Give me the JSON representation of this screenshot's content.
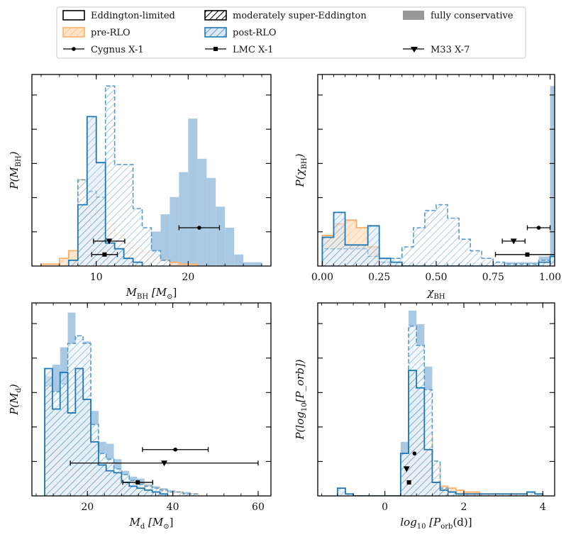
{
  "legend": {
    "items": [
      {
        "label": "Eddington-limited",
        "kind": "open"
      },
      {
        "label": "moderately super-Eddington",
        "kind": "hatch"
      },
      {
        "label": "fully conservative",
        "kind": "filled"
      },
      {
        "label": "pre-RLO",
        "kind": "pre"
      },
      {
        "label": "post-RLO",
        "kind": "post"
      },
      {
        "label": "Cygnus X-1",
        "kind": "marker",
        "marker": "circle"
      },
      {
        "label": "LMC X-1",
        "kind": "marker",
        "marker": "square"
      },
      {
        "label": "M33 X-7",
        "kind": "marker",
        "marker": "triangle"
      }
    ]
  },
  "colors": {
    "post_edge": "#1f77b4",
    "pre_edge": "#ffb066",
    "pre_fill": "#ffddbb",
    "full_fill": "#a9c9e3",
    "post_hatch_fill": "#c9dcee",
    "gray": "#999999"
  },
  "chart_data": [
    {
      "id": "mbh",
      "type": "histogram",
      "xlabel_base": "M",
      "xlabel_sub": "BH",
      "xlabel_unit": "[M",
      "xlabel_unit_sub": "⊙",
      "xlabel_close": "]",
      "ylabel_base": "P(M",
      "ylabel_sub": "BH",
      "ylabel_close": ")",
      "xlim": [
        3,
        29
      ],
      "ylim": [
        0,
        1.0
      ],
      "xticks": [
        10,
        20
      ],
      "xticklabels": [
        "10",
        "20"
      ],
      "binw": 1.0,
      "fully_post": {
        "start": 15,
        "heights": [
          0.08,
          0.18,
          0.27,
          0.36,
          0.49,
          0.77,
          0.56,
          0.46,
          0.31,
          0.2,
          0.06,
          0.02,
          0.02
        ]
      },
      "super_post": {
        "start": 8,
        "heights": [
          0.45,
          0.39,
          0.36,
          0.94,
          0.53,
          0.53,
          0.3,
          0.2,
          0.08,
          0.03
        ]
      },
      "edd_post": {
        "start": 7,
        "heights": [
          0.03,
          0.32,
          0.78,
          0.54,
          0.12,
          0.09,
          0.04,
          0.02
        ]
      },
      "pre": {
        "start": 4,
        "heights": [
          0.01,
          0.01,
          0.04,
          0.08,
          0.45,
          0.37,
          0.28,
          0.22,
          0.16,
          0.12,
          0.09,
          0.07,
          0.05,
          0.03,
          0.02,
          0.01,
          0.01
        ]
      },
      "points": [
        {
          "name": "Cygnus X-1",
          "marker": "circle",
          "x": 21.2,
          "xerr": 2.2,
          "y": 0.2
        },
        {
          "name": "M33 X-7",
          "marker": "triangle",
          "x": 11.4,
          "xerr": 1.7,
          "y": 0.13
        },
        {
          "name": "LMC X-1",
          "marker": "square",
          "x": 10.9,
          "xerr": 1.4,
          "y": 0.06
        }
      ]
    },
    {
      "id": "chi",
      "type": "histogram",
      "xlabel_base": "χ",
      "xlabel_sub": "BH",
      "ylabel_base": "P(χ",
      "ylabel_sub": "BH",
      "ylabel_close": ")",
      "xlim": [
        -0.02,
        1.02
      ],
      "ylim": [
        0,
        1.0
      ],
      "xticks": [
        0.0,
        0.25,
        0.5,
        0.75,
        1.0
      ],
      "xticklabels": [
        "0.00",
        "0.25",
        "0.50",
        "0.75",
        "1.00"
      ],
      "binw": 0.05,
      "fully_post": {
        "start": 0.0,
        "heights": [
          0.02,
          0.02,
          0.02,
          0.02,
          0.02,
          0.02,
          0.02,
          0.02,
          0.02,
          0.02,
          0.02,
          0.02,
          0.02,
          0.02,
          0.02,
          0.02,
          0.02,
          0.02,
          0.02,
          0.05,
          0.94
        ]
      },
      "super_post": {
        "start": 0.0,
        "heights": [
          0.09,
          0.09,
          0.09,
          0.09,
          0.05,
          0.02,
          0.04,
          0.1,
          0.2,
          0.29,
          0.32,
          0.25,
          0.14,
          0.08,
          0.04,
          0.02,
          0.01,
          0.01,
          0.01,
          0.03,
          0.05
        ]
      },
      "edd_post": {
        "start": 0.0,
        "heights": [
          0.15,
          0.28,
          0.11,
          0.11,
          0.21,
          0.04,
          0.02,
          0.0,
          0.0,
          0.0,
          0.0,
          0.0,
          0.0,
          0.0,
          0.0,
          0.0,
          0.0,
          0.0,
          0.0,
          0.02,
          0.05
        ]
      },
      "pre": {
        "start": 0.0,
        "heights": [
          0.16,
          0.22,
          0.24,
          0.2,
          0.1,
          0.02
        ]
      },
      "points": [
        {
          "name": "Cygnus X-1",
          "marker": "circle",
          "x": 0.95,
          "xerr": 0.05,
          "y": 0.2
        },
        {
          "name": "M33 X-7",
          "marker": "triangle",
          "x": 0.84,
          "xerr": 0.05,
          "y": 0.13
        },
        {
          "name": "LMC X-1",
          "marker": "square",
          "x": 0.9,
          "xerr": 0.14,
          "y": 0.06
        }
      ]
    },
    {
      "id": "md",
      "type": "histogram",
      "xlabel_base": "M",
      "xlabel_sub": "d",
      "xlabel_unit": "[M",
      "xlabel_unit_sub": "⊙",
      "xlabel_close": "]",
      "ylabel_base": "P(M",
      "ylabel_sub": "d",
      "ylabel_close": ")",
      "xlim": [
        7,
        63
      ],
      "ylim": [
        0,
        1.0
      ],
      "xticks": [
        20,
        40,
        60
      ],
      "xticklabels": [
        "20",
        "40",
        "60"
      ],
      "binw": 1.8,
      "fully_post": {
        "start": 10,
        "heights": [
          0.62,
          0.68,
          0.77,
          0.95,
          0.82,
          0.8,
          0.44,
          0.28,
          0.27,
          0.19,
          0.13,
          0.1,
          0.09,
          0.06,
          0.05,
          0.04,
          0.03,
          0.02,
          0.02,
          0.01
        ]
      },
      "super_post": {
        "start": 10,
        "heights": [
          0.57,
          0.54,
          0.58,
          0.79,
          0.83,
          0.79,
          0.37,
          0.22,
          0.19,
          0.14,
          0.11,
          0.08,
          0.06,
          0.05,
          0.04,
          0.03,
          0.02,
          0.02,
          0.01,
          0.01
        ]
      },
      "edd_post": {
        "start": 10,
        "heights": [
          0.66,
          0.45,
          0.64,
          0.43,
          0.66,
          0.5,
          0.28,
          0.16,
          0.13,
          0.12,
          0.07,
          0.05,
          0.04,
          0.03,
          0.02,
          0.01
        ]
      },
      "pre": {
        "start": 10,
        "heights": [
          0.26,
          0.24,
          0.14,
          0.14,
          0.12,
          0.14,
          0.1,
          0.1,
          0.08,
          0.09,
          0.07,
          0.07,
          0.06,
          0.05,
          0.04,
          0.03,
          0.02,
          0.02,
          0.01,
          0.01
        ]
      },
      "points": [
        {
          "name": "Cygnus X-1",
          "marker": "circle",
          "x": 40.6,
          "xerr": 7.7,
          "y": 0.24
        },
        {
          "name": "M33 X-7",
          "marker": "triangle",
          "x": 38.0,
          "xerr": 22.0,
          "y": 0.17
        },
        {
          "name": "LMC X-1",
          "marker": "square",
          "x": 31.8,
          "xerr": 3.5,
          "y": 0.07
        }
      ]
    },
    {
      "id": "porb",
      "type": "histogram",
      "xlabel_base": "log",
      "xlabel_sub": "10",
      "xlabel_unit": "[P",
      "xlabel_unit_sub": "orb",
      "xlabel_close": "(d)]",
      "ylabel_base": "P(log",
      "ylabel_sub": "10",
      "ylabel_close": "[P_orb])",
      "xlim": [
        -1.7,
        4.3
      ],
      "ylim": [
        0,
        1.0
      ],
      "xticks": [
        0,
        2,
        4
      ],
      "xticklabels": [
        "0",
        "2",
        "4"
      ],
      "binw": 0.2,
      "fully_post": {
        "start": 0.4,
        "heights": [
          0.28,
          0.96,
          0.89,
          0.67,
          0.16
        ]
      },
      "super_post": {
        "start": 0.4,
        "heights": [
          0.22,
          0.88,
          0.78,
          0.55,
          0.18,
          0.04,
          0.02
        ]
      },
      "edd_post": {
        "start": -1.2,
        "heights": [
          0.04,
          0.01,
          0.0,
          0.0,
          0.0,
          0.0,
          0.0,
          0.0,
          0.22,
          0.65,
          0.56,
          0.24,
          0.07,
          0.03,
          0.02,
          0.01,
          0.01,
          0.01,
          0.01,
          0.01,
          0.01,
          0.01,
          0.01,
          0.01,
          0.02,
          0.01
        ]
      },
      "pre": {
        "start": 0.4,
        "heights": [
          0.1,
          0.28,
          0.38,
          0.31,
          0.16,
          0.05,
          0.04,
          0.03,
          0.02,
          0.02,
          0.01,
          0.01,
          0.01,
          0.01,
          0.01,
          0.01
        ]
      },
      "points": [
        {
          "name": "Cygnus X-1",
          "marker": "circle",
          "x": 0.75,
          "xerr": 0.0,
          "y": 0.22
        },
        {
          "name": "M33 X-7",
          "marker": "triangle",
          "x": 0.55,
          "xerr": 0.0,
          "y": 0.14
        },
        {
          "name": "LMC X-1",
          "marker": "square",
          "x": 0.61,
          "xerr": 0.0,
          "y": 0.07
        }
      ]
    }
  ]
}
